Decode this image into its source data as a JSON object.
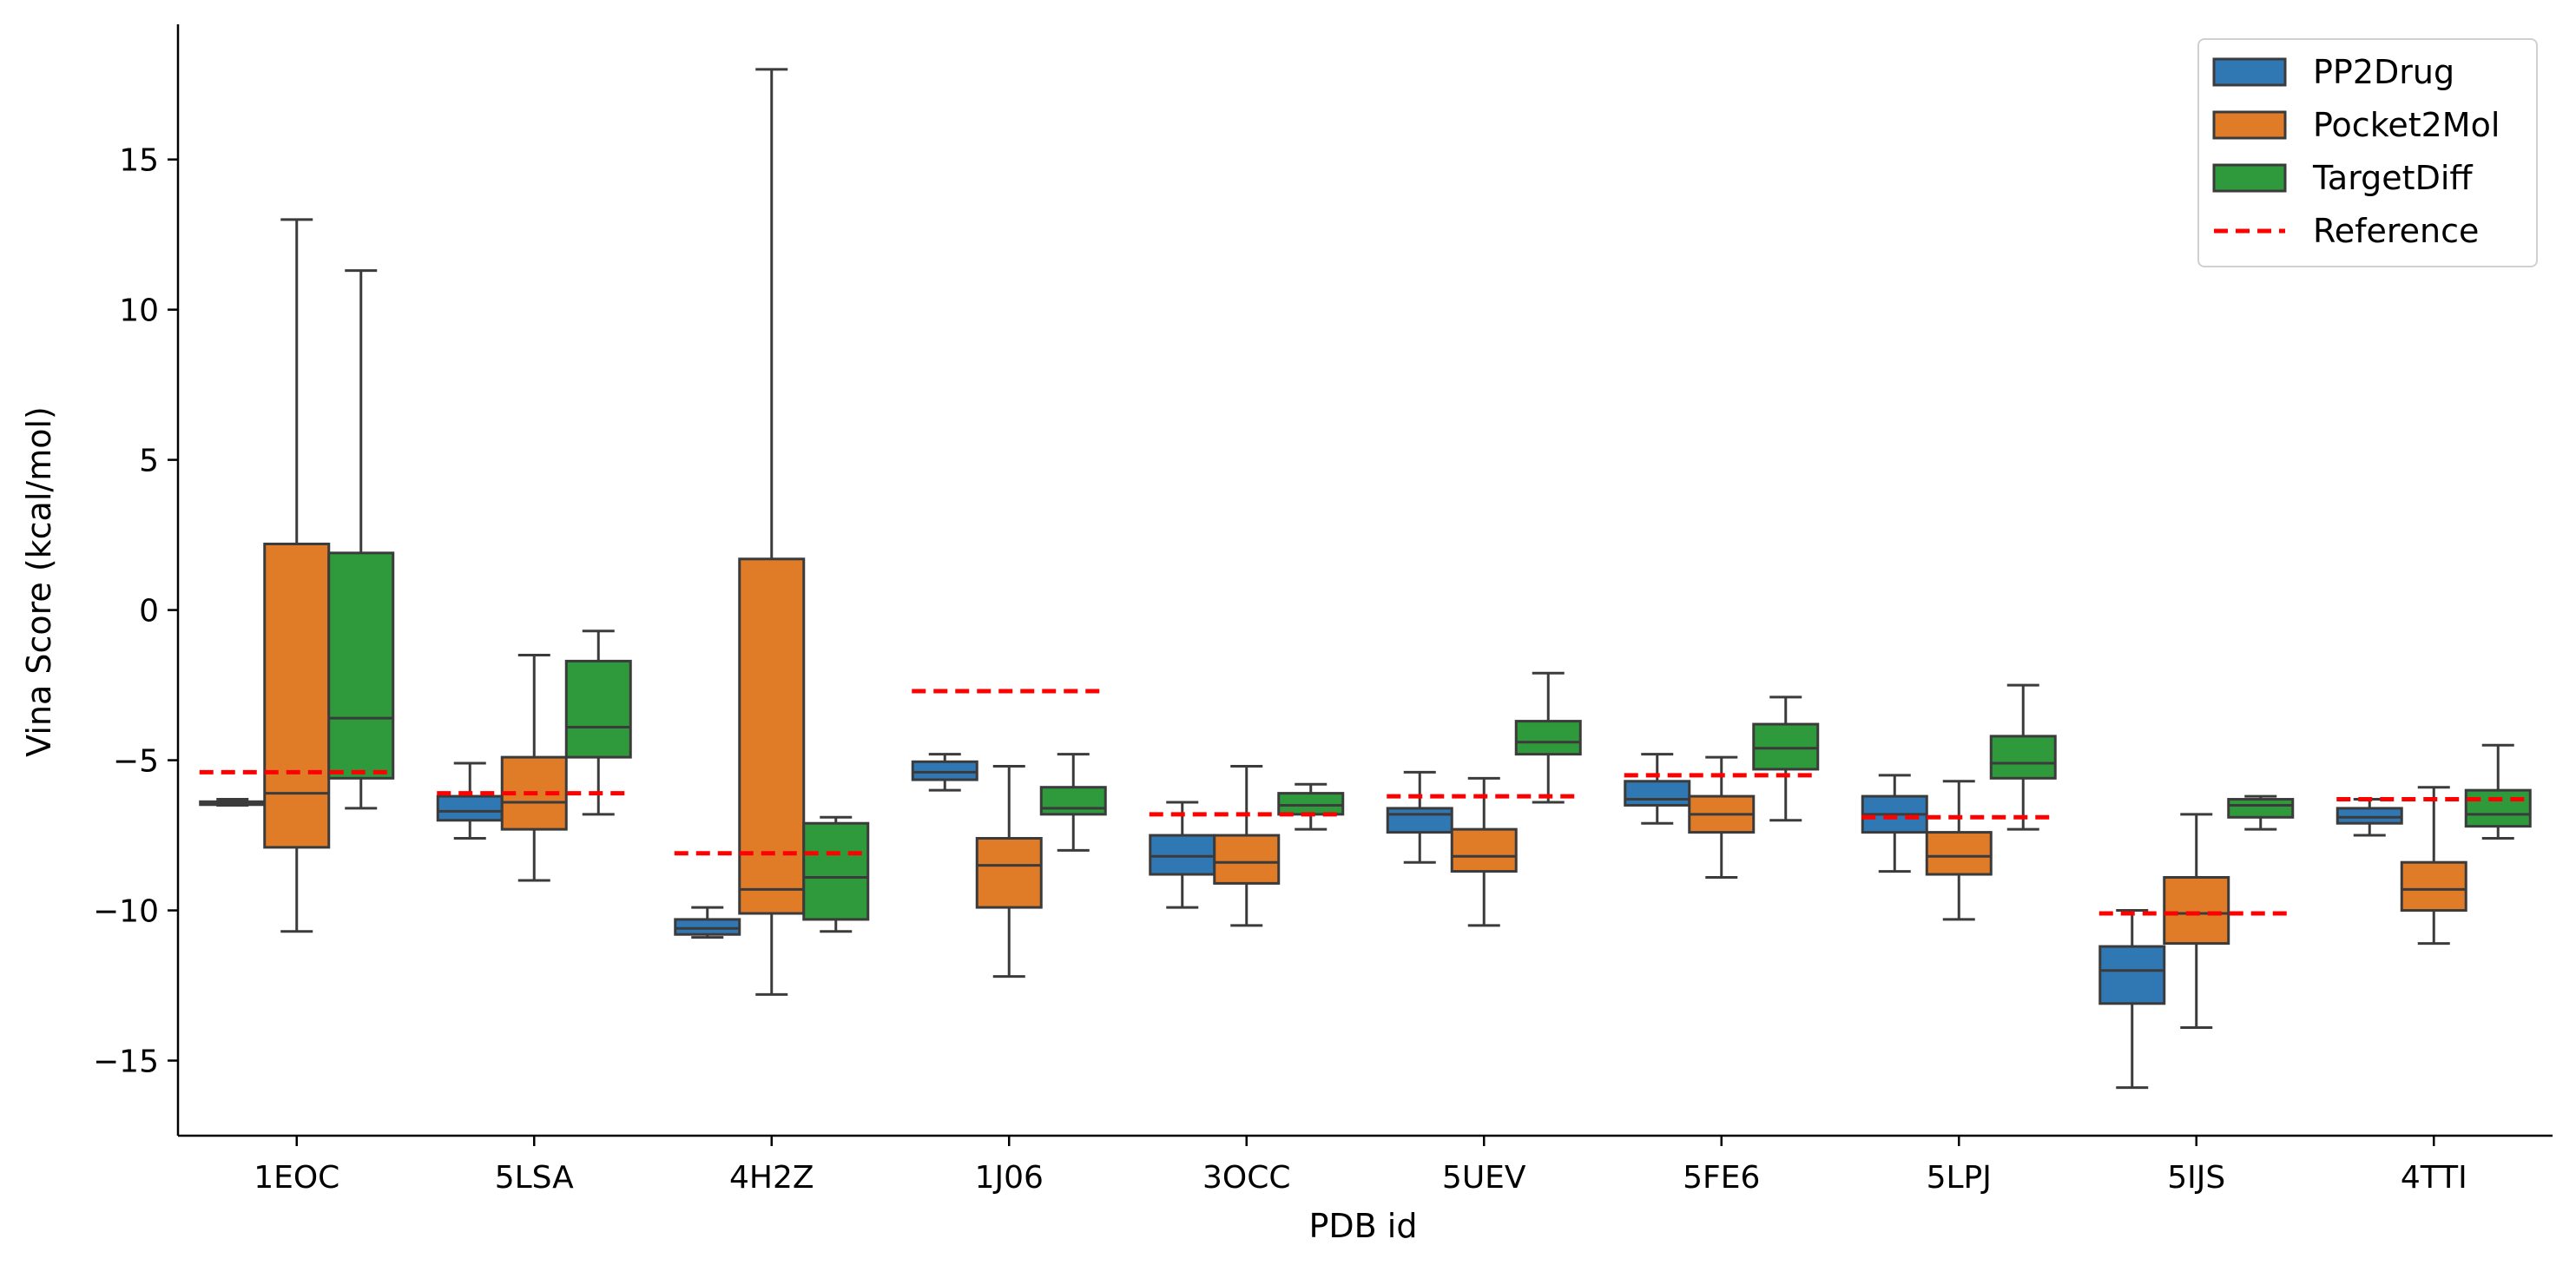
{
  "chart_data": {
    "type": "box",
    "xlabel": "PDB id",
    "ylabel": "Vina Score (kcal/mol)",
    "ylim": [
      -17.5,
      19.5
    ],
    "yticks": [
      -15,
      -10,
      -5,
      0,
      5,
      10,
      15
    ],
    "ytick_labels": [
      "−15",
      "−10",
      "−5",
      "0",
      "5",
      "10",
      "15"
    ],
    "categories": [
      "1EOC",
      "5LSA",
      "4H2Z",
      "1J06",
      "3OCC",
      "5UEV",
      "5FE6",
      "5LPJ",
      "5IJS",
      "4TTI"
    ],
    "series": [
      {
        "name": "PP2Drug",
        "color": "#2f78b3",
        "boxes": [
          {
            "whislo": -6.5,
            "q1": -6.48,
            "med": -6.45,
            "q3": -6.38,
            "whishi": -6.3
          },
          {
            "whislo": -7.6,
            "q1": -7.0,
            "med": -6.7,
            "q3": -6.2,
            "whishi": -5.1
          },
          {
            "whislo": -10.9,
            "q1": -10.8,
            "med": -10.6,
            "q3": -10.3,
            "whishi": -9.9
          },
          {
            "whislo": -6.0,
            "q1": -5.65,
            "med": -5.4,
            "q3": -5.05,
            "whishi": -4.8
          },
          {
            "whislo": -9.9,
            "q1": -8.8,
            "med": -8.2,
            "q3": -7.5,
            "whishi": -6.4
          },
          {
            "whislo": -8.4,
            "q1": -7.4,
            "med": -6.8,
            "q3": -6.6,
            "whishi": -5.4
          },
          {
            "whislo": -7.1,
            "q1": -6.5,
            "med": -6.3,
            "q3": -5.7,
            "whishi": -4.8
          },
          {
            "whislo": -8.7,
            "q1": -7.4,
            "med": -6.8,
            "q3": -6.2,
            "whishi": -5.5
          },
          {
            "whislo": -15.9,
            "q1": -13.1,
            "med": -12.0,
            "q3": -11.2,
            "whishi": -10.0
          },
          {
            "whislo": -7.5,
            "q1": -7.1,
            "med": -6.9,
            "q3": -6.6,
            "whishi": -6.3
          }
        ]
      },
      {
        "name": "Pocket2Mol",
        "color": "#e07b28",
        "boxes": [
          {
            "whislo": -10.7,
            "q1": -7.9,
            "med": -6.1,
            "q3": 2.2,
            "whishi": 13.0
          },
          {
            "whislo": -9.0,
            "q1": -7.3,
            "med": -6.4,
            "q3": -4.9,
            "whishi": -1.5
          },
          {
            "whislo": -12.8,
            "q1": -10.1,
            "med": -9.3,
            "q3": 1.7,
            "whishi": 18.0
          },
          {
            "whislo": -12.2,
            "q1": -9.9,
            "med": -8.5,
            "q3": -7.6,
            "whishi": -5.2
          },
          {
            "whislo": -10.5,
            "q1": -9.1,
            "med": -8.4,
            "q3": -7.5,
            "whishi": -5.2
          },
          {
            "whislo": -10.5,
            "q1": -8.7,
            "med": -8.2,
            "q3": -7.3,
            "whishi": -5.6
          },
          {
            "whislo": -8.9,
            "q1": -7.4,
            "med": -6.8,
            "q3": -6.2,
            "whishi": -4.9
          },
          {
            "whislo": -10.3,
            "q1": -8.8,
            "med": -8.2,
            "q3": -7.4,
            "whishi": -5.7
          },
          {
            "whislo": -13.9,
            "q1": -11.1,
            "med": -10.1,
            "q3": -8.9,
            "whishi": -6.8
          },
          {
            "whislo": -11.1,
            "q1": -10.0,
            "med": -9.3,
            "q3": -8.4,
            "whishi": -5.9
          }
        ]
      },
      {
        "name": "TargetDiff",
        "color": "#2f9a3b",
        "boxes": [
          {
            "whislo": -6.6,
            "q1": -5.6,
            "med": -3.6,
            "q3": 1.9,
            "whishi": 11.3
          },
          {
            "whislo": -6.8,
            "q1": -4.9,
            "med": -3.9,
            "q3": -1.7,
            "whishi": -0.7
          },
          {
            "whislo": -10.7,
            "q1": -10.3,
            "med": -8.9,
            "q3": -7.1,
            "whishi": -6.9
          },
          {
            "whislo": -8.0,
            "q1": -6.8,
            "med": -6.6,
            "q3": -5.9,
            "whishi": -4.8
          },
          {
            "whislo": -7.3,
            "q1": -6.8,
            "med": -6.5,
            "q3": -6.1,
            "whishi": -5.8
          },
          {
            "whislo": -6.4,
            "q1": -4.8,
            "med": -4.4,
            "q3": -3.7,
            "whishi": -2.1
          },
          {
            "whislo": -7.0,
            "q1": -5.3,
            "med": -4.6,
            "q3": -3.8,
            "whishi": -2.9
          },
          {
            "whislo": -7.3,
            "q1": -5.6,
            "med": -5.1,
            "q3": -4.2,
            "whishi": -2.5
          },
          {
            "whislo": -7.3,
            "q1": -6.9,
            "med": -6.5,
            "q3": -6.3,
            "whishi": -6.2
          },
          {
            "whislo": -7.6,
            "q1": -7.2,
            "med": -6.8,
            "q3": -6.0,
            "whishi": -4.5
          }
        ]
      }
    ],
    "reference": {
      "name": "Reference",
      "color": "#ff0000",
      "values": [
        -5.4,
        -6.1,
        -8.1,
        -2.7,
        -6.8,
        -6.2,
        -5.5,
        -6.9,
        -10.1,
        -6.3
      ]
    },
    "legend": {
      "position": "top-right",
      "entries": [
        "PP2Drug",
        "Pocket2Mol",
        "TargetDiff",
        "Reference"
      ]
    }
  }
}
